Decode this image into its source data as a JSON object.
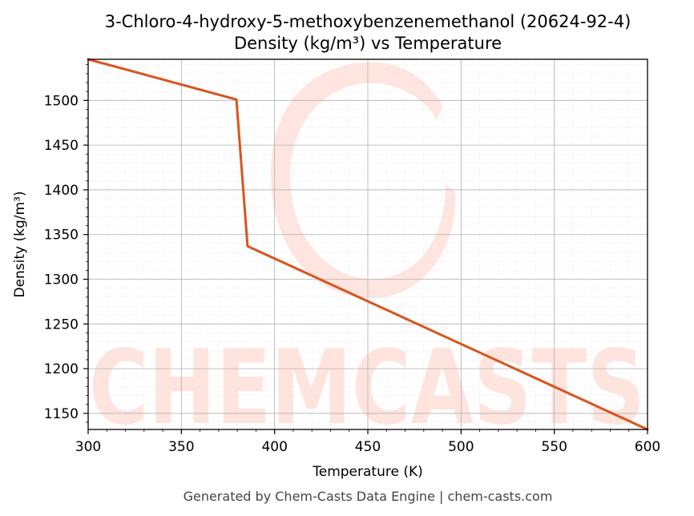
{
  "chart_data": {
    "type": "line",
    "title": "3-Chloro-4-hydroxy-5-methoxybenzenemethanol (20624-92-4)",
    "subtitle": "Density (kg/m³) vs Temperature",
    "xlabel": "Temperature (K)",
    "ylabel": "Density (kg/m³)",
    "xlim": [
      300,
      600
    ],
    "ylim": [
      1132,
      1546
    ],
    "x_ticks": [
      300,
      350,
      400,
      450,
      500,
      550,
      600
    ],
    "y_ticks": [
      1150,
      1200,
      1250,
      1300,
      1350,
      1400,
      1450,
      1500
    ],
    "grid": true,
    "series": [
      {
        "color": "#d9541e",
        "x": [
          300,
          379.5,
          385.5,
          600
        ],
        "y": [
          1546,
          1501,
          1337,
          1132
        ]
      }
    ]
  },
  "watermark": "CHEMCASTS",
  "footer": "Generated by Chem-Casts Data Engine | chem-casts.com"
}
